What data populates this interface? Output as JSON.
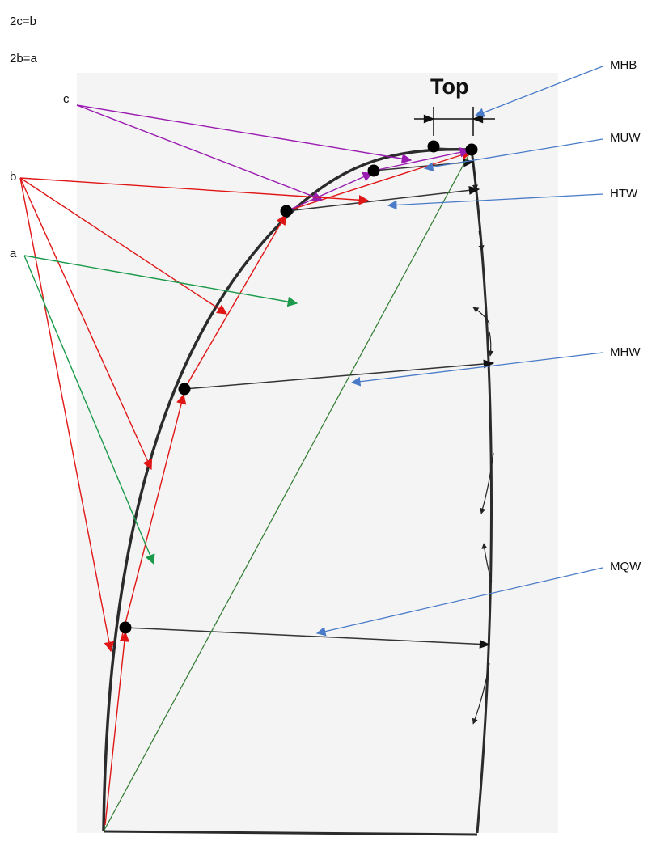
{
  "equations": [
    "2c=b",
    "2b=a"
  ],
  "pointer_labels": {
    "c": "c",
    "b": "b",
    "a": "a"
  },
  "top_label": "Top",
  "measurements": [
    "MHB",
    "MUW",
    "HTW",
    "MHW",
    "MQW"
  ],
  "colors": {
    "outline": "#2b2b2b",
    "c_arrows": "#9a1bb0",
    "b_arrows": "#e01616",
    "a_arrows": "#1a9a4a",
    "callouts": "#4a7bc8",
    "green_line": "#2f7a2f",
    "background_panel": "#f3f3f3"
  }
}
